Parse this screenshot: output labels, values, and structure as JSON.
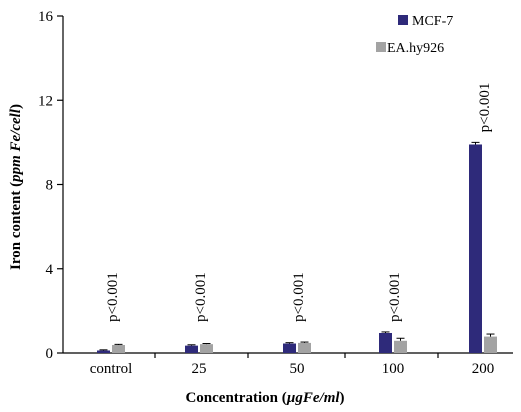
{
  "chart_data": {
    "type": "bar",
    "categories": [
      "control",
      "25",
      "50",
      "100",
      "200"
    ],
    "series": [
      {
        "name": "MCF-7",
        "color": "#2e2a7a",
        "values": [
          0.12,
          0.35,
          0.45,
          0.95,
          9.9
        ],
        "errors": [
          0.03,
          0.04,
          0.04,
          0.05,
          0.1
        ]
      },
      {
        "name": "EA.hy926",
        "color": "#a3a3a3",
        "values": [
          0.38,
          0.42,
          0.48,
          0.58,
          0.78
        ],
        "errors": [
          0.03,
          0.03,
          0.04,
          0.12,
          0.12
        ]
      }
    ],
    "annotations": [
      "p<0.001",
      "p<0.001",
      "p<0.001",
      "p<0.001",
      "p<0.001"
    ],
    "yticks": [
      "0",
      "4",
      "8",
      "12",
      "16"
    ],
    "ylim": [
      0,
      16
    ],
    "xlabel": {
      "main": "Concentration (",
      "unit": "µgFe/ml",
      "close": ")"
    },
    "ylabel": {
      "main": "Iron content (",
      "unit": "ppm Fe/cell",
      "close": ")"
    },
    "legend_position": "top-right",
    "grid": false
  }
}
